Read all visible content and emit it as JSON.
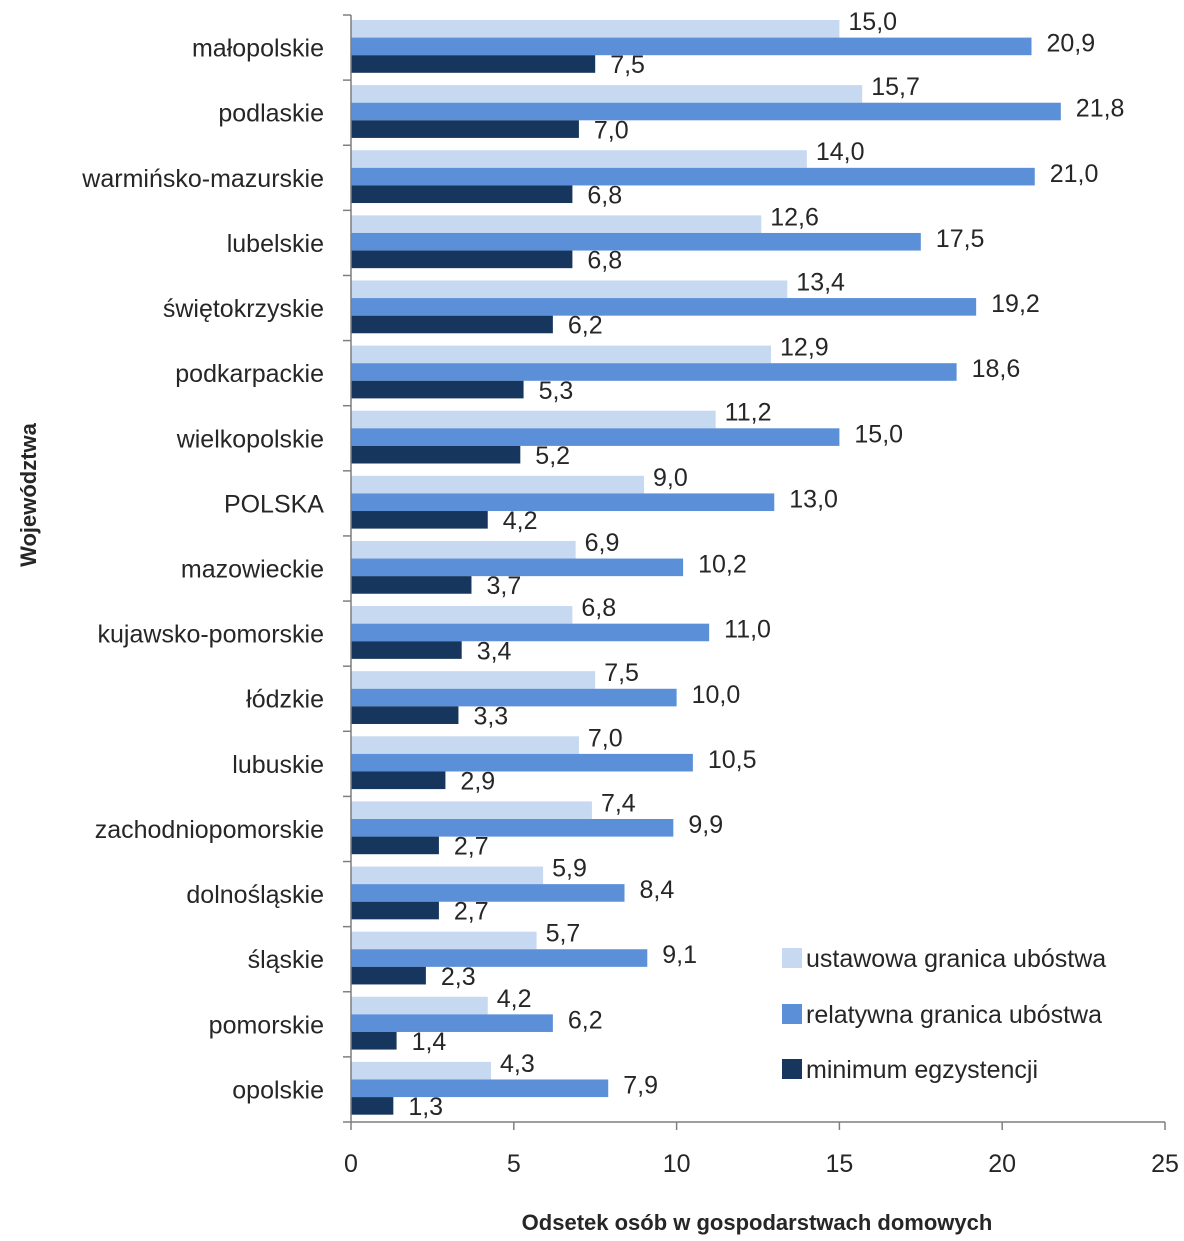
{
  "chart_data": {
    "type": "bar",
    "orientation": "horizontal",
    "categories": [
      "małopolskie",
      "podlaskie",
      "warmińsko-mazurskie",
      "lubelskie",
      "świętokrzyskie",
      "podkarpackie",
      "wielkopolskie",
      "POLSKA",
      "mazowieckie",
      "kujawsko-pomorskie",
      "łódzkie",
      "lubuskie",
      "zachodniopomorskie",
      "dolnośląskie",
      "śląskie",
      "pomorskie",
      "opolskie"
    ],
    "series": [
      {
        "name": "ustawowa granica ubóstwa",
        "color": "#c6d9f1",
        "values": [
          15.0,
          15.7,
          14.0,
          12.6,
          13.4,
          12.9,
          11.2,
          9.0,
          6.9,
          6.8,
          7.5,
          7.0,
          7.4,
          5.9,
          5.7,
          4.2,
          4.3
        ],
        "labels": [
          "15,0",
          "15,7",
          "14,0",
          "12,6",
          "13,4",
          "12,9",
          "11,2",
          "9,0",
          "6,9",
          "6,8",
          "7,5",
          "7,0",
          "7,4",
          "5,9",
          "5,7",
          "4,2",
          "4,3"
        ]
      },
      {
        "name": "relatywna granica ubóstwa",
        "color": "#5b8fd8",
        "values": [
          20.9,
          21.8,
          21.0,
          17.5,
          19.2,
          18.6,
          15.0,
          13.0,
          10.2,
          11.0,
          10.0,
          10.5,
          9.9,
          8.4,
          9.1,
          6.2,
          7.9
        ],
        "labels": [
          "20,9",
          "21,8",
          "21,0",
          "17,5",
          "19,2",
          "18,6",
          "15,0",
          "13,0",
          "10,2",
          "11,0",
          "10,0",
          "10,5",
          "9,9",
          "8,4",
          "9,1",
          "6,2",
          "7,9"
        ]
      },
      {
        "name": "minimum egzystencji",
        "color": "#17365d",
        "values": [
          7.5,
          7.0,
          6.8,
          6.8,
          6.2,
          5.3,
          5.2,
          4.2,
          3.7,
          3.4,
          3.3,
          2.9,
          2.7,
          2.7,
          2.3,
          1.4,
          1.3
        ],
        "labels": [
          "7,5",
          "7,0",
          "6,8",
          "6,8",
          "6,2",
          "5,3",
          "5,2",
          "4,2",
          "3,7",
          "3,4",
          "3,3",
          "2,9",
          "2,7",
          "2,7",
          "2,3",
          "1,4",
          "1,3"
        ]
      }
    ],
    "xlabel": "Odsetek osób w gospodarstwach domowych",
    "ylabel": "Województwa",
    "xlim": [
      0,
      25
    ],
    "xticks": [
      0,
      5,
      10,
      15,
      20,
      25
    ],
    "xtick_labels": [
      "0",
      "5",
      "10",
      "15",
      "20",
      "25"
    ],
    "grid": false,
    "legend_position": "bottom-right"
  }
}
